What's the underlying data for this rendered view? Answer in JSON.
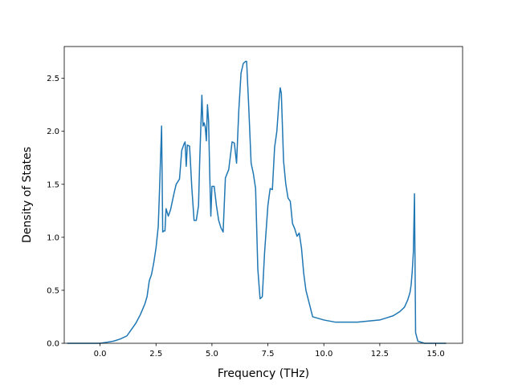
{
  "chart_data": {
    "type": "line",
    "title": "",
    "xlabel": "Frequency (THz)",
    "ylabel": "Density of States",
    "xlim": [
      -1.6,
      16.2
    ],
    "ylim": [
      0.0,
      2.8
    ],
    "x_ticks": [
      0.0,
      2.5,
      5.0,
      7.5,
      10.0,
      12.5,
      15.0
    ],
    "x_tick_labels": [
      "0.0",
      "2.5",
      "5.0",
      "7.5",
      "10.0",
      "12.5",
      "15.0"
    ],
    "y_ticks": [
      0.0,
      0.5,
      1.0,
      1.5,
      2.0,
      2.5
    ],
    "y_tick_labels": [
      "0.0",
      "0.5",
      "1.0",
      "1.5",
      "2.0",
      "2.5"
    ],
    "grid": false,
    "legend": "none",
    "series": [
      {
        "color": "#1f77b4",
        "x": [
          -1.45,
          -1.0,
          -0.5,
          0.0,
          0.3,
          0.6,
          0.9,
          1.2,
          1.4,
          1.6,
          1.8,
          2.0,
          2.1,
          2.2,
          2.3,
          2.4,
          2.5,
          2.6,
          2.65,
          2.75,
          2.8,
          2.85,
          2.9,
          2.95,
          3.05,
          3.15,
          3.3,
          3.4,
          3.55,
          3.65,
          3.75,
          3.8,
          3.85,
          3.9,
          4.0,
          4.1,
          4.2,
          4.3,
          4.4,
          4.45,
          4.55,
          4.6,
          4.65,
          4.7,
          4.75,
          4.8,
          4.85,
          4.9,
          4.95,
          5.0,
          5.05,
          5.1,
          5.2,
          5.3,
          5.4,
          5.5,
          5.6,
          5.75,
          5.9,
          6.0,
          6.1,
          6.2,
          6.3,
          6.4,
          6.5,
          6.55,
          6.65,
          6.75,
          6.85,
          6.95,
          7.05,
          7.15,
          7.25,
          7.35,
          7.5,
          7.6,
          7.7,
          7.8,
          7.9,
          8.0,
          8.05,
          8.1,
          8.2,
          8.3,
          8.4,
          8.5,
          8.6,
          8.7,
          8.8,
          8.9,
          9.0,
          9.1,
          9.2,
          9.5,
          10.0,
          10.5,
          11.0,
          11.5,
          12.0,
          12.5,
          12.8,
          13.1,
          13.4,
          13.6,
          13.75,
          13.85,
          13.9,
          13.95,
          14.0,
          14.05,
          14.1,
          14.2,
          14.5,
          15.0,
          15.45
        ],
        "y": [
          0.0,
          0.0,
          0.0,
          0.0,
          0.01,
          0.02,
          0.04,
          0.07,
          0.13,
          0.19,
          0.27,
          0.37,
          0.44,
          0.59,
          0.65,
          0.76,
          0.9,
          1.1,
          1.4,
          2.05,
          1.05,
          1.06,
          1.06,
          1.27,
          1.2,
          1.26,
          1.41,
          1.5,
          1.55,
          1.82,
          1.88,
          1.9,
          1.67,
          1.87,
          1.86,
          1.47,
          1.16,
          1.16,
          1.3,
          1.7,
          2.34,
          2.05,
          2.08,
          2.04,
          1.91,
          2.25,
          2.1,
          1.6,
          1.2,
          1.48,
          1.48,
          1.48,
          1.3,
          1.16,
          1.09,
          1.05,
          1.56,
          1.64,
          1.9,
          1.89,
          1.7,
          2.2,
          2.55,
          2.64,
          2.66,
          2.66,
          2.2,
          1.7,
          1.6,
          1.46,
          0.7,
          0.42,
          0.44,
          0.85,
          1.3,
          1.46,
          1.45,
          1.85,
          2.0,
          2.3,
          2.41,
          2.36,
          1.72,
          1.5,
          1.37,
          1.34,
          1.13,
          1.08,
          1.01,
          1.04,
          0.9,
          0.66,
          0.5,
          0.25,
          0.22,
          0.2,
          0.2,
          0.2,
          0.21,
          0.22,
          0.24,
          0.26,
          0.3,
          0.34,
          0.41,
          0.48,
          0.55,
          0.68,
          0.86,
          1.41,
          0.1,
          0.02,
          0.0,
          0.0,
          0.0
        ]
      }
    ]
  }
}
